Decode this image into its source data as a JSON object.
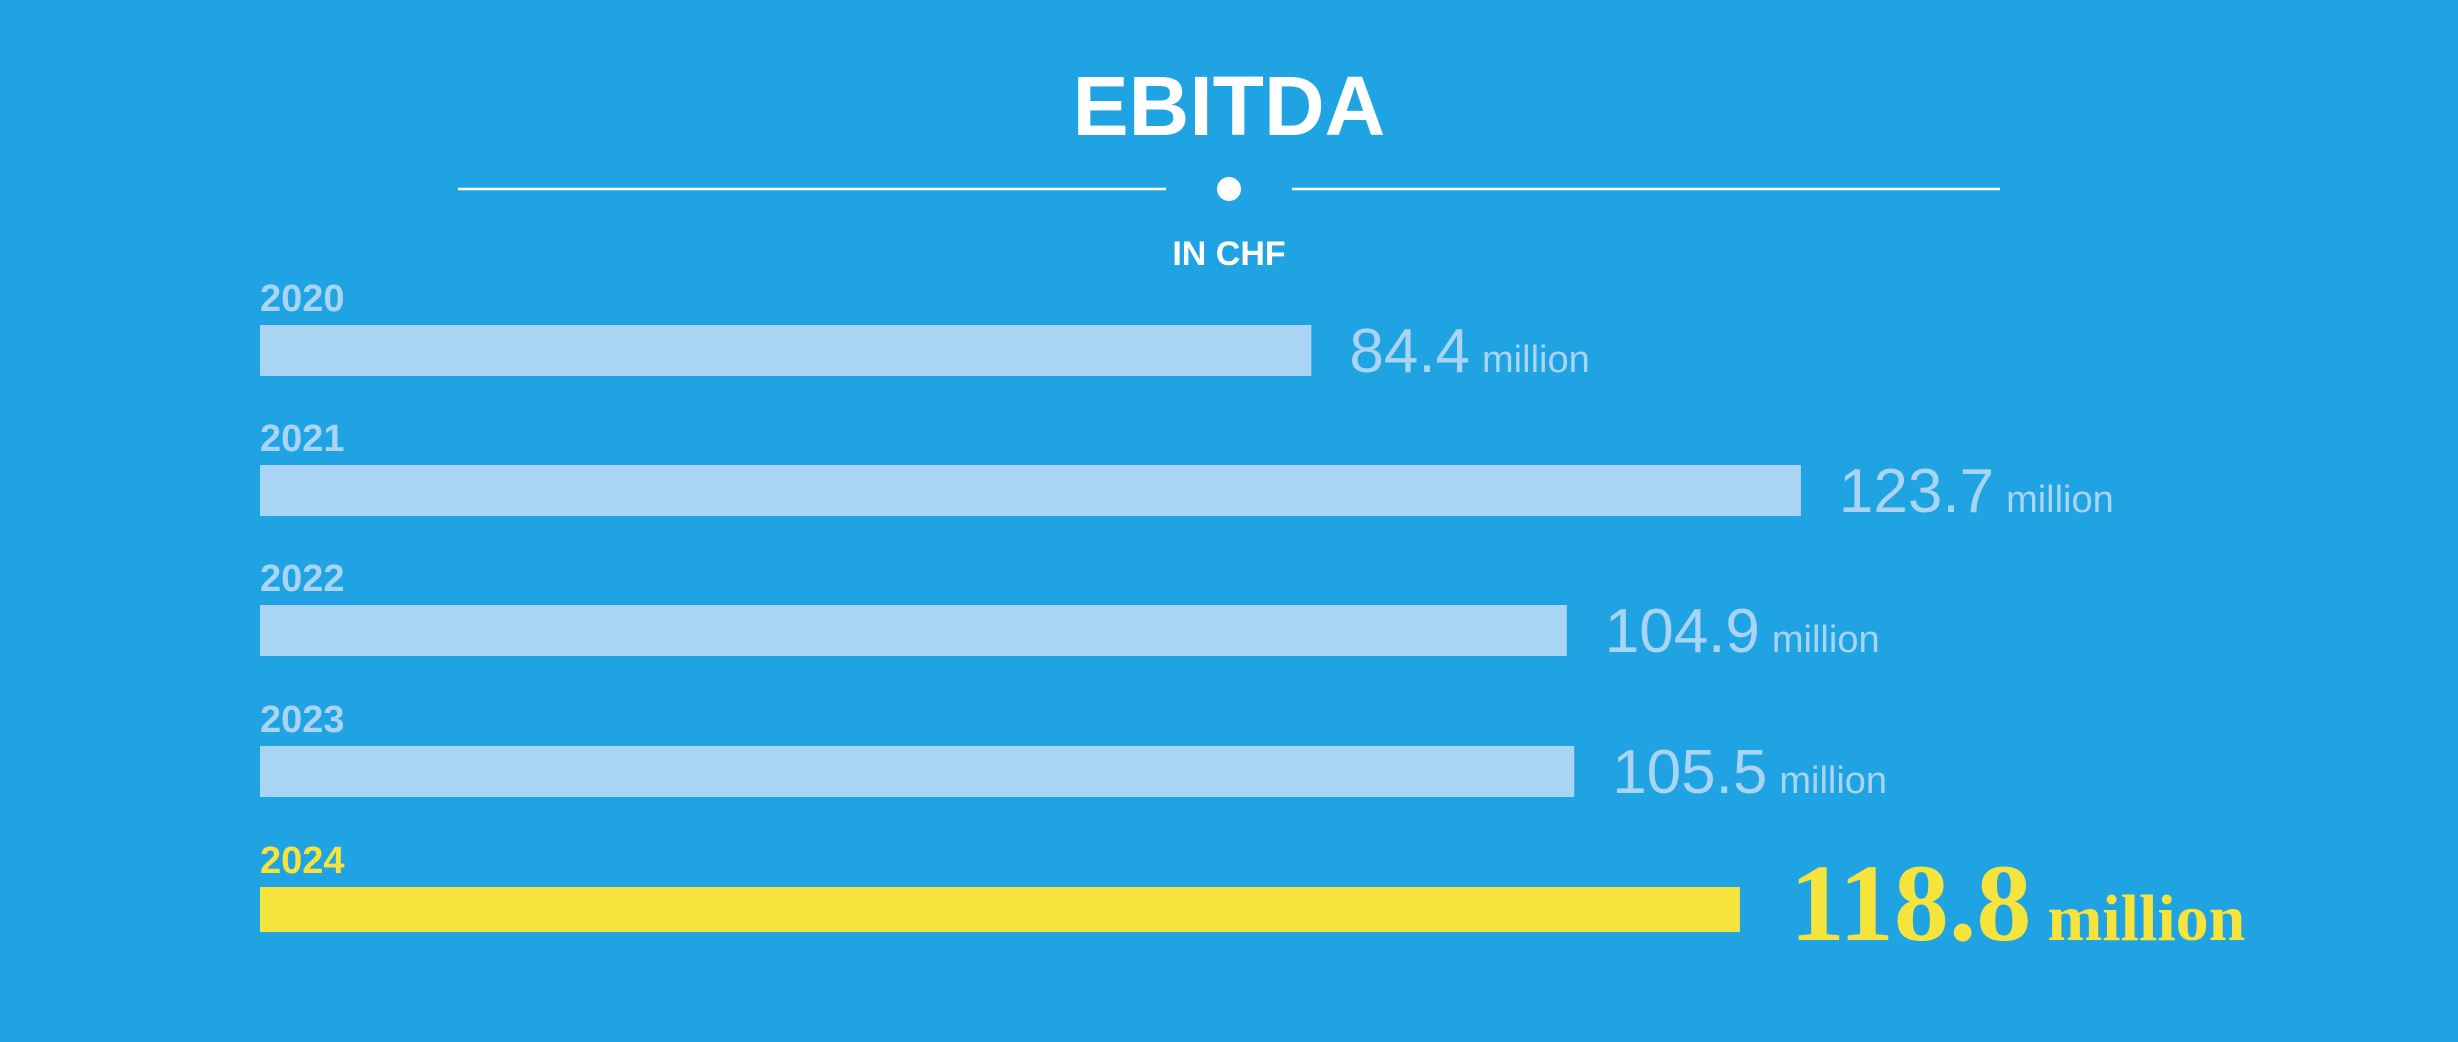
{
  "colors": {
    "background": "#1FA3E3",
    "past_bar": "#A9D4F3",
    "past_text": "#A9D4F3",
    "highlight": "#F6E43C",
    "white": "#FFFFFF"
  },
  "chart_data": {
    "type": "bar",
    "orientation": "horizontal",
    "title": "EBITDA",
    "subtitle": "IN CHF",
    "categories": [
      "2020",
      "2021",
      "2022",
      "2023",
      "2024"
    ],
    "values": [
      84.4,
      123.7,
      104.9,
      105.5,
      118.8
    ],
    "value_labels": [
      "84.4",
      "123.7",
      "104.9",
      "105.5",
      "118.8"
    ],
    "unit_label": "million",
    "highlight_category": "2024",
    "grid": false,
    "legend": "none"
  }
}
